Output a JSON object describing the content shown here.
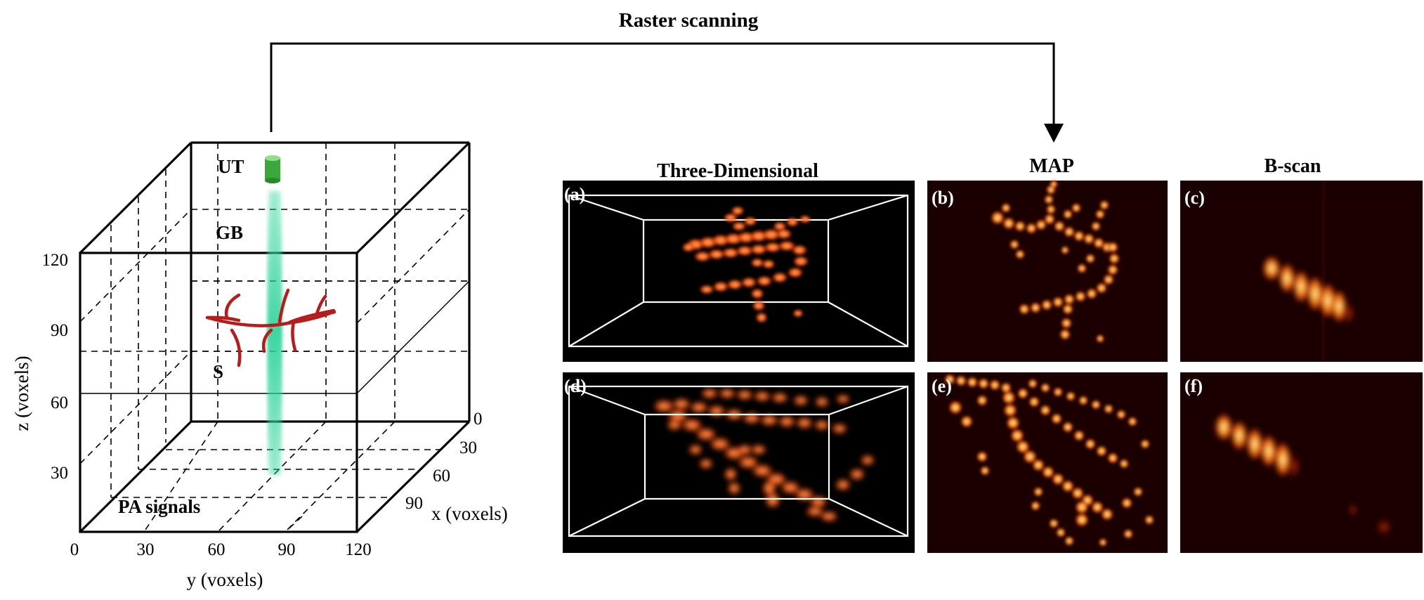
{
  "top_label": "Raster scanning",
  "cube_labels": {
    "ut": "UT",
    "gb": "GB",
    "s": "S",
    "pa": "PA signals"
  },
  "axes": {
    "z_label": "z (voxels)",
    "y_label": "y (voxels)",
    "x_label": "x (voxels)",
    "z_ticks": [
      "30",
      "60",
      "90",
      "120"
    ],
    "y_ticks": [
      "0",
      "30",
      "60",
      "90",
      "120"
    ],
    "x_ticks": [
      "0",
      "30",
      "60",
      "90"
    ]
  },
  "columns": {
    "three_d": "Three-Dimensional",
    "map": "MAP",
    "bscan": "B-scan"
  },
  "panels": [
    "(a)",
    "(b)",
    "(c)",
    "(d)",
    "(e)",
    "(f)"
  ],
  "colors": {
    "vessel_red": "#b71c1c",
    "transducer_green": "#3aa83a",
    "beam_green": "#2fd49a",
    "hot_orange": "#ff6a1a",
    "hot_yellow": "#ffe680",
    "panel_bg": "#000000",
    "map_bg": "#1a0000"
  }
}
